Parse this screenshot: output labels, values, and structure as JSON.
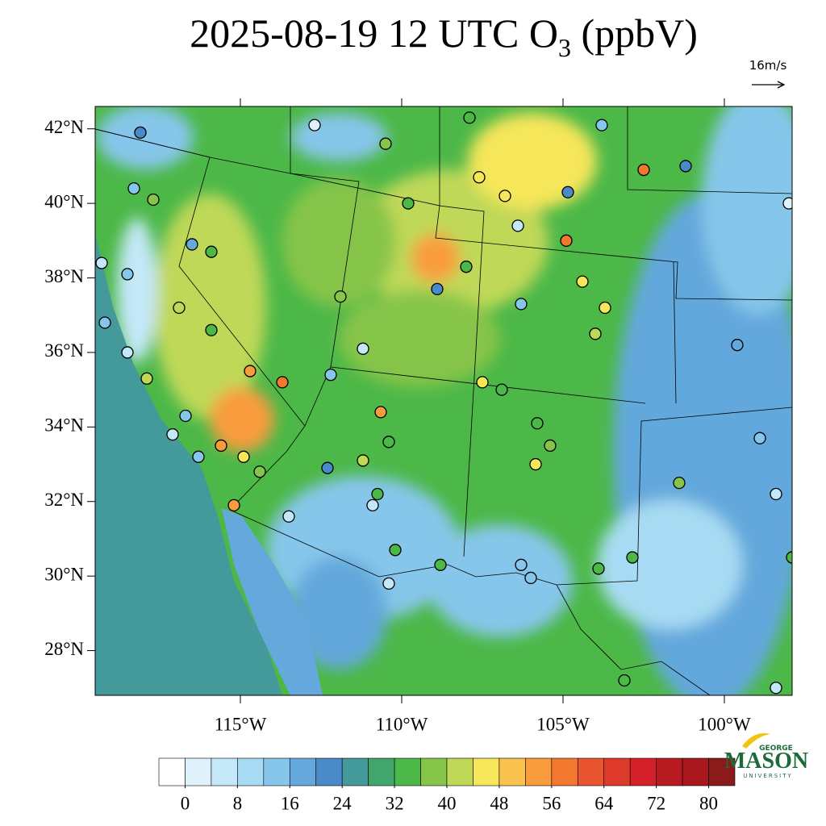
{
  "map_data": {
    "title": [
      "2025-08-19 12 UTC O",
      "3",
      " (ppbV)"
    ],
    "wind_reference": "16m/s",
    "lon_range": [
      -119.5,
      -97.9
    ],
    "lat_range": [
      26.8,
      42.6
    ],
    "lat_ticks": [
      {
        "value": 42,
        "label": "42°N"
      },
      {
        "value": 40,
        "label": "40°N"
      },
      {
        "value": 38,
        "label": "38°N"
      },
      {
        "value": 36,
        "label": "36°N"
      },
      {
        "value": 34,
        "label": "34°N"
      },
      {
        "value": 32,
        "label": "32°N"
      },
      {
        "value": 30,
        "label": "30°N"
      },
      {
        "value": 28,
        "label": "28°N"
      }
    ],
    "lon_ticks": [
      {
        "value": -115,
        "label": "115°W"
      },
      {
        "value": -110,
        "label": "110°W"
      },
      {
        "value": -105,
        "label": "105°W"
      },
      {
        "value": -100,
        "label": "100°W"
      }
    ],
    "colorbar": {
      "range": [
        -4,
        84
      ],
      "ticks": [
        0,
        8,
        16,
        24,
        32,
        40,
        48,
        56,
        64,
        72,
        80
      ],
      "colors": [
        "#ffffff",
        "#dff2fb",
        "#c4e8f8",
        "#a7dbf3",
        "#86c6ea",
        "#64a8dc",
        "#4a8ac8",
        "#44999a",
        "#41a66c",
        "#4cb848",
        "#86c54a",
        "#bfd858",
        "#f6e65a",
        "#fac24e",
        "#f99c3e",
        "#f2772f",
        "#e85530",
        "#dd3a2c",
        "#d42029",
        "#b81a22",
        "#a8181e",
        "#8b1a1a"
      ]
    },
    "stations": [
      {
        "lon": -118.1,
        "lat": 41.9,
        "value": 20
      },
      {
        "lon": -112.7,
        "lat": 42.1,
        "value": 2
      },
      {
        "lon": -110.5,
        "lat": 41.6,
        "value": 36
      },
      {
        "lon": -107.9,
        "lat": 42.3,
        "value": 34
      },
      {
        "lon": -103.8,
        "lat": 42.1,
        "value": 14
      },
      {
        "lon": -102.5,
        "lat": 40.9,
        "value": 58
      },
      {
        "lon": -101.2,
        "lat": 41.0,
        "value": 20
      },
      {
        "lon": -98.0,
        "lat": 40.0,
        "value": 2
      },
      {
        "lon": -117.7,
        "lat": 40.1,
        "value": 38
      },
      {
        "lon": -118.3,
        "lat": 40.4,
        "value": 14
      },
      {
        "lon": -109.8,
        "lat": 40.0,
        "value": 34
      },
      {
        "lon": -107.6,
        "lat": 40.7,
        "value": 46
      },
      {
        "lon": -106.8,
        "lat": 40.2,
        "value": 44
      },
      {
        "lon": -106.4,
        "lat": 39.4,
        "value": 6
      },
      {
        "lon": -104.9,
        "lat": 39.0,
        "value": 56
      },
      {
        "lon": -104.85,
        "lat": 40.3,
        "value": 20
      },
      {
        "lon": -119.3,
        "lat": 38.4,
        "value": 4
      },
      {
        "lon": -118.5,
        "lat": 38.1,
        "value": 12
      },
      {
        "lon": -116.5,
        "lat": 38.9,
        "value": 18
      },
      {
        "lon": -115.9,
        "lat": 38.7,
        "value": 34
      },
      {
        "lon": -111.9,
        "lat": 37.5,
        "value": 36
      },
      {
        "lon": -108.9,
        "lat": 37.7,
        "value": 20
      },
      {
        "lon": -108.0,
        "lat": 38.3,
        "value": 34
      },
      {
        "lon": -104.4,
        "lat": 37.9,
        "value": 46
      },
      {
        "lon": -103.7,
        "lat": 37.2,
        "value": 44
      },
      {
        "lon": -104.0,
        "lat": 36.5,
        "value": 40
      },
      {
        "lon": -106.3,
        "lat": 37.3,
        "value": 14
      },
      {
        "lon": -115.9,
        "lat": 36.6,
        "value": 32
      },
      {
        "lon": -116.9,
        "lat": 37.2,
        "value": 40
      },
      {
        "lon": -114.7,
        "lat": 35.5,
        "value": 54
      },
      {
        "lon": -113.7,
        "lat": 35.2,
        "value": 58
      },
      {
        "lon": -111.2,
        "lat": 36.1,
        "value": 4
      },
      {
        "lon": -112.2,
        "lat": 35.4,
        "value": 14
      },
      {
        "lon": -110.65,
        "lat": 34.4,
        "value": 52
      },
      {
        "lon": -107.5,
        "lat": 35.2,
        "value": 44
      },
      {
        "lon": -106.9,
        "lat": 35.0,
        "value": 34
      },
      {
        "lon": -105.8,
        "lat": 34.1,
        "value": 34
      },
      {
        "lon": -105.4,
        "lat": 33.5,
        "value": 36
      },
      {
        "lon": -105.85,
        "lat": 33.0,
        "value": 44
      },
      {
        "lon": -115.6,
        "lat": 33.5,
        "value": 54
      },
      {
        "lon": -115.2,
        "lat": 31.9,
        "value": 52
      },
      {
        "lon": -114.9,
        "lat": 33.2,
        "value": 44
      },
      {
        "lon": -114.4,
        "lat": 32.8,
        "value": 36
      },
      {
        "lon": -116.3,
        "lat": 33.2,
        "value": 12
      },
      {
        "lon": -117.1,
        "lat": 33.8,
        "value": 4
      },
      {
        "lon": -116.7,
        "lat": 34.3,
        "value": 14
      },
      {
        "lon": -119.2,
        "lat": 36.8,
        "value": 14
      },
      {
        "lon": -118.5,
        "lat": 36.0,
        "value": 6
      },
      {
        "lon": -117.9,
        "lat": 35.3,
        "value": 40
      },
      {
        "lon": -111.2,
        "lat": 33.1,
        "value": 40
      },
      {
        "lon": -110.4,
        "lat": 33.6,
        "value": 32
      },
      {
        "lon": -112.3,
        "lat": 32.9,
        "value": 20
      },
      {
        "lon": -110.75,
        "lat": 32.2,
        "value": 34
      },
      {
        "lon": -110.9,
        "lat": 31.9,
        "value": 4
      },
      {
        "lon": -110.2,
        "lat": 30.7,
        "value": 34
      },
      {
        "lon": -110.4,
        "lat": 29.8,
        "value": 6
      },
      {
        "lon": -113.5,
        "lat": 31.6,
        "value": 4
      },
      {
        "lon": -108.8,
        "lat": 30.3,
        "value": 34
      },
      {
        "lon": -106.0,
        "lat": 29.95,
        "value": 14
      },
      {
        "lon": -106.3,
        "lat": 30.3,
        "value": 12
      },
      {
        "lon": -103.9,
        "lat": 30.2,
        "value": 32
      },
      {
        "lon": -102.85,
        "lat": 30.5,
        "value": 34
      },
      {
        "lon": -101.4,
        "lat": 32.5,
        "value": 38
      },
      {
        "lon": -98.9,
        "lat": 33.7,
        "value": 12
      },
      {
        "lon": -98.4,
        "lat": 32.2,
        "value": 6
      },
      {
        "lon": -99.6,
        "lat": 36.2,
        "value": 18
      },
      {
        "lon": -103.1,
        "lat": 27.2,
        "value": 32
      },
      {
        "lon": -98.4,
        "lat": 27.0,
        "value": 4
      },
      {
        "lon": -97.9,
        "lat": 30.5,
        "value": 34
      }
    ],
    "logo": [
      "GEORGE",
      "MASON",
      "UNIVERSITY"
    ]
  }
}
